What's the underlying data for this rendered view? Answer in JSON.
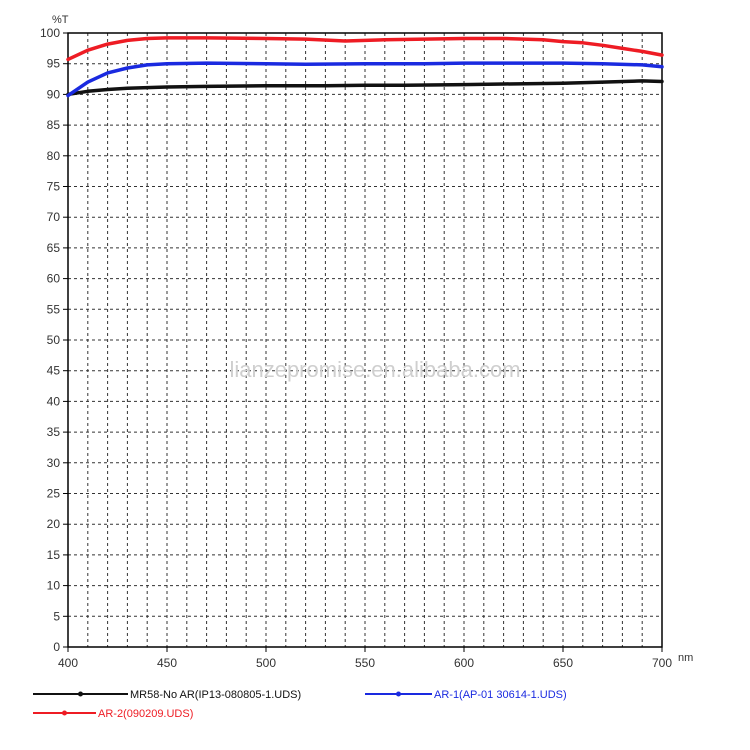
{
  "chart_data": {
    "type": "line",
    "title": "",
    "ylabel": "%T",
    "xlabel": "nm",
    "xlim": [
      400,
      700
    ],
    "ylim": [
      0,
      100
    ],
    "x_ticks": [
      400,
      450,
      500,
      550,
      600,
      650,
      700
    ],
    "y_ticks": [
      0,
      5,
      10,
      15,
      20,
      25,
      30,
      35,
      40,
      45,
      50,
      55,
      60,
      65,
      70,
      75,
      80,
      85,
      90,
      95,
      100
    ],
    "grid": true,
    "legend_position": "bottom",
    "watermark": "lianzepromise.en.alibaba.com",
    "series": [
      {
        "name": "MR58-No AR(IP13-080805-1.UDS)",
        "color": "#111111",
        "x": [
          400,
          410,
          420,
          430,
          450,
          470,
          500,
          530,
          550,
          570,
          600,
          620,
          650,
          670,
          690,
          700
        ],
        "y": [
          90.0,
          90.5,
          90.8,
          91.0,
          91.2,
          91.3,
          91.4,
          91.4,
          91.5,
          91.5,
          91.6,
          91.7,
          91.8,
          92.0,
          92.2,
          92.1
        ]
      },
      {
        "name": "AR-2(090209.UDS)",
        "color": "#ee1c24",
        "x": [
          400,
          410,
          420,
          430,
          440,
          450,
          470,
          500,
          520,
          540,
          560,
          580,
          600,
          620,
          640,
          650,
          660,
          670,
          680,
          690,
          700
        ],
        "y": [
          95.7,
          97.2,
          98.2,
          98.8,
          99.1,
          99.2,
          99.2,
          99.1,
          99.0,
          98.7,
          98.9,
          99.0,
          99.1,
          99.1,
          98.9,
          98.6,
          98.4,
          98.0,
          97.5,
          97.0,
          96.4
        ]
      },
      {
        "name": "AR-1(AP-01 30614-1.UDS)",
        "color": "#1a2ae0",
        "x": [
          400,
          410,
          420,
          430,
          440,
          450,
          470,
          500,
          520,
          550,
          580,
          600,
          620,
          650,
          670,
          690,
          700
        ],
        "y": [
          89.8,
          92.0,
          93.5,
          94.3,
          94.8,
          95.0,
          95.1,
          95.0,
          94.9,
          95.0,
          95.0,
          95.1,
          95.1,
          95.1,
          95.0,
          94.8,
          94.5
        ]
      }
    ]
  }
}
